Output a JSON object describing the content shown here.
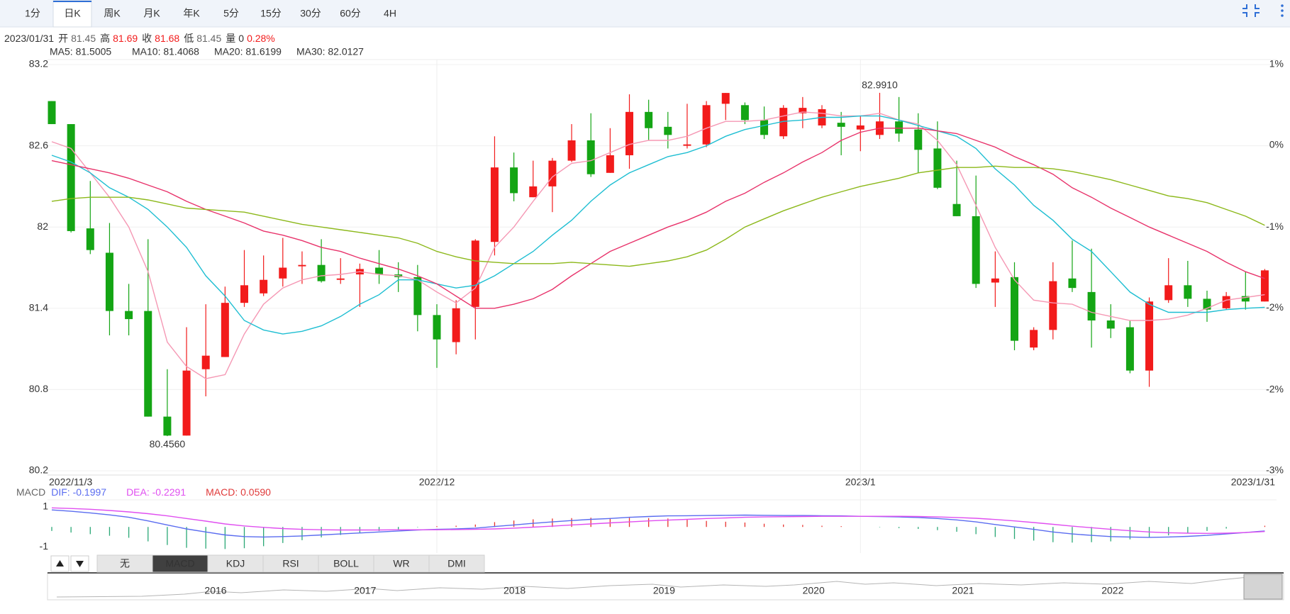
{
  "toolbar": {
    "tabs": [
      "1分",
      "日K",
      "周K",
      "月K",
      "年K",
      "5分",
      "15分",
      "30分",
      "60分",
      "4H"
    ],
    "active": "日K"
  },
  "info": {
    "date": "2023/01/31",
    "fields": [
      {
        "label": "开",
        "value": 81.45,
        "color": "#666666"
      },
      {
        "label": "高",
        "value": 81.69,
        "color": "#f21b1b"
      },
      {
        "label": "收",
        "value": 81.68,
        "color": "#f21b1b"
      },
      {
        "label": "低",
        "value": 81.45,
        "color": "#666666"
      },
      {
        "label": "量",
        "value": 0,
        "color": "#333333"
      }
    ],
    "change": "0.28%",
    "change_color": "#f21b1b"
  },
  "chart_data": [
    {
      "type": "candlestick",
      "up_color": "#f21b1b",
      "down_color": "#14a514",
      "grid": true,
      "categories": [
        "2022/11/3",
        null,
        null,
        null,
        null,
        null,
        null,
        null,
        null,
        null,
        null,
        null,
        null,
        null,
        null,
        null,
        null,
        null,
        null,
        null,
        "2022/12",
        null,
        null,
        null,
        null,
        null,
        null,
        null,
        null,
        null,
        null,
        null,
        null,
        null,
        null,
        null,
        null,
        null,
        null,
        null,
        null,
        null,
        "2023/1",
        null,
        null,
        null,
        null,
        null,
        null,
        null,
        null,
        null,
        null,
        null,
        null,
        null,
        null,
        null,
        null,
        null,
        null,
        null,
        null,
        "2023/1/31"
      ],
      "open": [
        82.93,
        82.76,
        81.99,
        81.81,
        81.38,
        81.38,
        80.6,
        80.46,
        80.95,
        81.04,
        81.44,
        81.51,
        81.62,
        81.71,
        81.72,
        81.61,
        81.65,
        81.7,
        81.65,
        81.63,
        81.35,
        81.15,
        81.41,
        81.89,
        82.44,
        82.22,
        82.3,
        82.49,
        82.64,
        82.4,
        82.53,
        82.85,
        82.74,
        82.6,
        82.61,
        82.91,
        82.9,
        82.79,
        82.67,
        82.84,
        82.75,
        82.77,
        82.72,
        82.68,
        82.78,
        82.72,
        82.58,
        82.17,
        82.08,
        81.59,
        81.63,
        81.11,
        81.24,
        81.62,
        81.52,
        81.31,
        81.26,
        80.94,
        81.46,
        81.57,
        81.47,
        81.4,
        81.49,
        81.45
      ],
      "high": [
        82.93,
        82.76,
        82.34,
        82.03,
        81.58,
        81.91,
        80.95,
        81.26,
        81.43,
        81.56,
        81.83,
        81.79,
        81.92,
        81.82,
        81.91,
        81.77,
        81.73,
        81.83,
        81.74,
        81.72,
        81.43,
        81.46,
        81.91,
        82.67,
        82.55,
        82.49,
        82.51,
        82.76,
        82.84,
        82.73,
        82.98,
        82.94,
        82.85,
        82.91,
        82.93,
        82.99,
        82.92,
        82.89,
        82.9,
        82.96,
        82.9,
        82.85,
        82.82,
        82.991,
        82.96,
        82.84,
        82.78,
        82.49,
        82.38,
        81.82,
        81.74,
        81.26,
        81.74,
        81.9,
        81.84,
        81.43,
        81.31,
        81.48,
        81.77,
        81.75,
        81.53,
        81.52,
        81.67,
        81.69
      ],
      "low": [
        82.76,
        81.96,
        81.8,
        81.2,
        81.2,
        80.6,
        80.456,
        80.46,
        80.75,
        81.04,
        81.41,
        81.49,
        81.56,
        81.58,
        81.59,
        81.58,
        81.41,
        81.58,
        81.52,
        81.23,
        80.96,
        81.06,
        81.17,
        81.79,
        82.19,
        82.22,
        82.11,
        82.48,
        82.37,
        82.4,
        82.43,
        82.64,
        82.58,
        82.58,
        82.59,
        82.79,
        82.76,
        82.65,
        82.65,
        82.73,
        82.73,
        82.53,
        82.56,
        82.65,
        82.63,
        82.4,
        82.28,
        82.08,
        81.55,
        81.41,
        81.09,
        81.09,
        81.17,
        81.52,
        81.11,
        81.18,
        80.92,
        80.82,
        81.44,
        81.41,
        81.3,
        81.39,
        81.39,
        81.45
      ],
      "close": [
        82.76,
        81.97,
        81.83,
        81.38,
        81.32,
        80.6,
        80.46,
        80.94,
        81.05,
        81.44,
        81.57,
        81.61,
        81.7,
        81.72,
        81.6,
        81.62,
        81.69,
        81.65,
        81.63,
        81.35,
        81.17,
        81.4,
        81.9,
        82.44,
        82.25,
        82.3,
        82.49,
        82.64,
        82.39,
        82.53,
        82.85,
        82.73,
        82.68,
        82.61,
        82.9,
        82.99,
        82.79,
        82.68,
        82.88,
        82.88,
        82.87,
        82.74,
        82.75,
        82.78,
        82.69,
        82.57,
        82.29,
        82.08,
        81.58,
        81.62,
        81.16,
        81.24,
        81.6,
        81.55,
        81.31,
        81.25,
        80.94,
        81.45,
        81.57,
        81.47,
        81.39,
        81.49,
        81.45,
        81.68
      ],
      "series": [
        {
          "name": "MA5: 81.5005",
          "color": "#f598b4",
          "values": [
            82.63,
            82.58,
            82.4,
            82.22,
            82.0,
            81.67,
            81.15,
            80.97,
            80.88,
            80.91,
            81.21,
            81.43,
            81.55,
            81.61,
            81.64,
            81.65,
            81.67,
            81.65,
            81.64,
            81.61,
            81.52,
            81.44,
            81.55,
            81.85,
            82.0,
            82.19,
            82.37,
            82.47,
            82.49,
            82.55,
            82.61,
            82.64,
            82.64,
            82.67,
            82.73,
            82.78,
            82.78,
            82.79,
            82.82,
            82.85,
            82.84,
            82.82,
            82.82,
            82.84,
            82.79,
            82.76,
            82.64,
            82.46,
            82.16,
            81.85,
            81.61,
            81.46,
            81.44,
            81.43,
            81.37,
            81.34,
            81.31,
            81.31,
            81.32,
            81.35,
            81.4,
            81.46,
            81.48,
            81.5005
          ]
        },
        {
          "name": "MA10: 81.4068",
          "color": "#1ebed2",
          "values": [
            82.53,
            82.48,
            82.4,
            82.29,
            82.22,
            82.13,
            82.0,
            81.85,
            81.64,
            81.49,
            81.31,
            81.24,
            81.21,
            81.23,
            81.27,
            81.34,
            81.43,
            81.5,
            81.61,
            81.61,
            81.58,
            81.55,
            81.57,
            81.64,
            81.73,
            81.82,
            81.94,
            82.05,
            82.19,
            82.31,
            82.4,
            82.46,
            82.52,
            82.55,
            82.6,
            82.67,
            82.72,
            82.75,
            82.78,
            82.79,
            82.81,
            82.81,
            82.82,
            82.82,
            82.79,
            82.75,
            82.71,
            82.67,
            82.58,
            82.43,
            82.31,
            82.16,
            82.05,
            81.91,
            81.82,
            81.67,
            81.52,
            81.43,
            81.37,
            81.37,
            81.37,
            81.39,
            81.4,
            81.4068
          ]
        },
        {
          "name": "MA20: 81.6199",
          "color": "#e8336b",
          "values": [
            82.49,
            82.46,
            82.43,
            82.4,
            82.36,
            82.31,
            82.26,
            82.19,
            82.13,
            82.08,
            82.03,
            81.97,
            81.94,
            81.9,
            81.85,
            81.82,
            81.77,
            81.73,
            81.69,
            81.64,
            81.58,
            81.49,
            81.4,
            81.4,
            81.43,
            81.47,
            81.54,
            81.64,
            81.73,
            81.82,
            81.88,
            81.94,
            82.0,
            82.05,
            82.11,
            82.19,
            82.25,
            82.33,
            82.4,
            82.48,
            82.55,
            82.64,
            82.7,
            82.73,
            82.73,
            82.73,
            82.71,
            82.69,
            82.64,
            82.59,
            82.52,
            82.46,
            82.39,
            82.29,
            82.22,
            82.14,
            82.07,
            82.0,
            81.94,
            81.88,
            81.82,
            81.74,
            81.67,
            81.6199
          ]
        },
        {
          "name": "MA30: 82.0127",
          "color": "#8cb81a",
          "values": [
            82.19,
            82.21,
            82.22,
            82.22,
            82.22,
            82.2,
            82.17,
            82.14,
            82.13,
            82.12,
            82.11,
            82.08,
            82.05,
            82.02,
            82.0,
            81.98,
            81.96,
            81.94,
            81.92,
            81.88,
            81.82,
            81.78,
            81.75,
            81.74,
            81.73,
            81.73,
            81.73,
            81.74,
            81.73,
            81.72,
            81.71,
            81.73,
            81.75,
            81.78,
            81.83,
            81.91,
            82.0,
            82.06,
            82.12,
            82.17,
            82.22,
            82.26,
            82.3,
            82.33,
            82.36,
            82.4,
            82.42,
            82.44,
            82.44,
            82.45,
            82.44,
            82.44,
            82.43,
            82.41,
            82.38,
            82.35,
            82.31,
            82.27,
            82.23,
            82.21,
            82.18,
            82.13,
            82.08,
            82.0127
          ]
        }
      ],
      "max_label": "82.9910",
      "min_label": "80.4560",
      "ylim": [
        80.2,
        83.2
      ],
      "yticks": [
        83.2,
        82.6,
        82,
        81.4,
        80.8,
        80.2
      ],
      "y2lim": [
        -3.02,
        0.6
      ],
      "y2ticks": [
        {
          "value": 0.6,
          "label": "1%"
        },
        {
          "value": -0.12,
          "label": "0%"
        },
        {
          "value": -0.85,
          "label": "-1%"
        },
        {
          "value": -1.57,
          "label": "-2%"
        },
        {
          "value": -2.3,
          "label": "-2%"
        },
        {
          "value": -3.02,
          "label": "-3%"
        }
      ]
    },
    {
      "type": "macd",
      "title": "MACD",
      "ylim": [
        -1.3,
        1.35
      ],
      "yticks": [
        1,
        -1
      ],
      "series": [
        {
          "name": "DIF: -0.1997",
          "color": "#5a6cf0",
          "values": [
            0.85,
            0.78,
            0.7,
            0.6,
            0.48,
            0.3,
            0.1,
            -0.1,
            -0.25,
            -0.4,
            -0.48,
            -0.5,
            -0.48,
            -0.45,
            -0.4,
            -0.35,
            -0.3,
            -0.25,
            -0.2,
            -0.15,
            -0.12,
            -0.1,
            -0.06,
            0.02,
            0.1,
            0.18,
            0.25,
            0.32,
            0.38,
            0.42,
            0.48,
            0.52,
            0.55,
            0.56,
            0.57,
            0.58,
            0.59,
            0.58,
            0.57,
            0.57,
            0.56,
            0.55,
            0.53,
            0.52,
            0.5,
            0.47,
            0.42,
            0.35,
            0.25,
            0.12,
            0.0,
            -0.12,
            -0.25,
            -0.35,
            -0.42,
            -0.48,
            -0.5,
            -0.52,
            -0.5,
            -0.47,
            -0.42,
            -0.35,
            -0.28,
            -0.1997
          ]
        },
        {
          "name": "DEA: -0.2291",
          "color": "#e04ff0",
          "values": [
            0.95,
            0.92,
            0.88,
            0.82,
            0.75,
            0.66,
            0.55,
            0.42,
            0.29,
            0.15,
            0.05,
            -0.02,
            -0.08,
            -0.12,
            -0.14,
            -0.15,
            -0.15,
            -0.15,
            -0.14,
            -0.14,
            -0.14,
            -0.13,
            -0.12,
            -0.1,
            -0.06,
            -0.01,
            0.04,
            0.1,
            0.15,
            0.2,
            0.25,
            0.3,
            0.34,
            0.38,
            0.42,
            0.45,
            0.48,
            0.5,
            0.51,
            0.52,
            0.53,
            0.53,
            0.53,
            0.53,
            0.53,
            0.52,
            0.5,
            0.47,
            0.43,
            0.37,
            0.3,
            0.22,
            0.13,
            0.04,
            -0.04,
            -0.12,
            -0.19,
            -0.25,
            -0.29,
            -0.31,
            -0.32,
            -0.31,
            -0.28,
            -0.2291
          ]
        },
        {
          "name": "MACD: 0.0590",
          "color": "#e03a3a",
          "up_color": "#e8332f",
          "down_color": "#2aa876",
          "values": [
            -0.2,
            -0.28,
            -0.36,
            -0.44,
            -0.54,
            -0.72,
            -0.9,
            -1.04,
            -1.08,
            -1.1,
            -1.06,
            -0.96,
            -0.8,
            -0.66,
            -0.52,
            -0.4,
            -0.3,
            -0.2,
            -0.12,
            -0.02,
            0.04,
            0.06,
            0.12,
            0.24,
            0.32,
            0.38,
            0.42,
            0.44,
            0.46,
            0.44,
            0.46,
            0.44,
            0.42,
            0.36,
            0.3,
            0.26,
            0.22,
            0.16,
            0.12,
            0.1,
            0.06,
            0.04,
            0.0,
            -0.02,
            -0.06,
            -0.1,
            -0.16,
            -0.24,
            -0.36,
            -0.5,
            -0.6,
            -0.68,
            -0.76,
            -0.78,
            -0.76,
            -0.72,
            -0.62,
            -0.54,
            -0.42,
            -0.32,
            -0.2,
            -0.08,
            0.0,
            0.059
          ]
        }
      ]
    }
  ],
  "indicators": {
    "tabs": [
      "无",
      "MACD",
      "KDJ",
      "RSI",
      "BOLL",
      "WR",
      "DMI"
    ],
    "active": "MACD"
  },
  "navigator": {
    "labels": [
      "2016",
      "2017",
      "2018",
      "2019",
      "2020",
      "2021",
      "2022"
    ]
  }
}
